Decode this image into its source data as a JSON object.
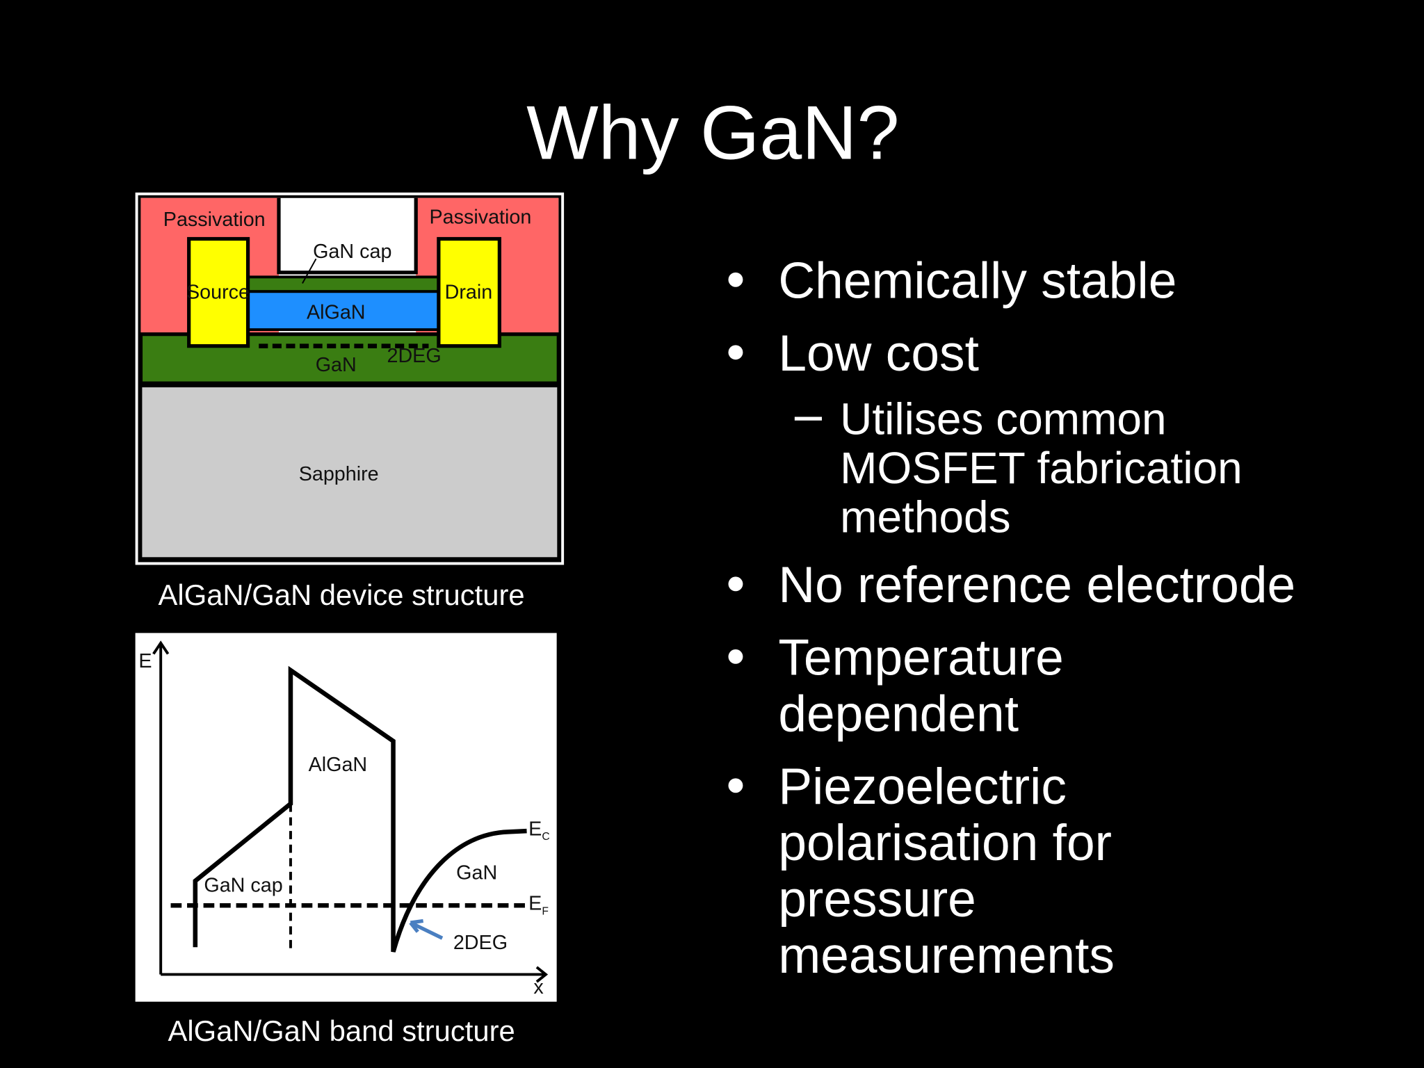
{
  "title": "Why GaN?",
  "device_figure": {
    "labels": {
      "passivation_left": "Passivation",
      "passivation_right": "Passivation",
      "gan_cap": "GaN cap",
      "source": "Source",
      "drain": "Drain",
      "algan": "AlGaN",
      "gan": "GaN",
      "two_deg": "2DEG",
      "sapphire": "Sapphire"
    },
    "caption": "AlGaN/GaN device structure"
  },
  "band_figure": {
    "labels": {
      "e_axis": "E",
      "x_axis": "x",
      "algan": "AlGaN",
      "gan_cap": "GaN cap",
      "gan": "GaN",
      "ec": {
        "base": "E",
        "sub": "C"
      },
      "ef": {
        "base": "E",
        "sub": "F"
      },
      "two_deg": "2DEG"
    },
    "caption": "AlGaN/GaN band structure"
  },
  "bullets": [
    {
      "lines": [
        "Chemically stable"
      ]
    },
    {
      "lines": [
        "Low cost"
      ],
      "sub": [
        {
          "lines": [
            "Utilises common",
            "MOSFET fabrication",
            "methods"
          ]
        }
      ]
    },
    {
      "lines": [
        "No reference electrode"
      ]
    },
    {
      "lines": [
        "Temperature",
        "dependent"
      ]
    },
    {
      "lines": [
        "Piezoelectric",
        "polarisation for",
        "pressure",
        "measurements"
      ]
    }
  ]
}
